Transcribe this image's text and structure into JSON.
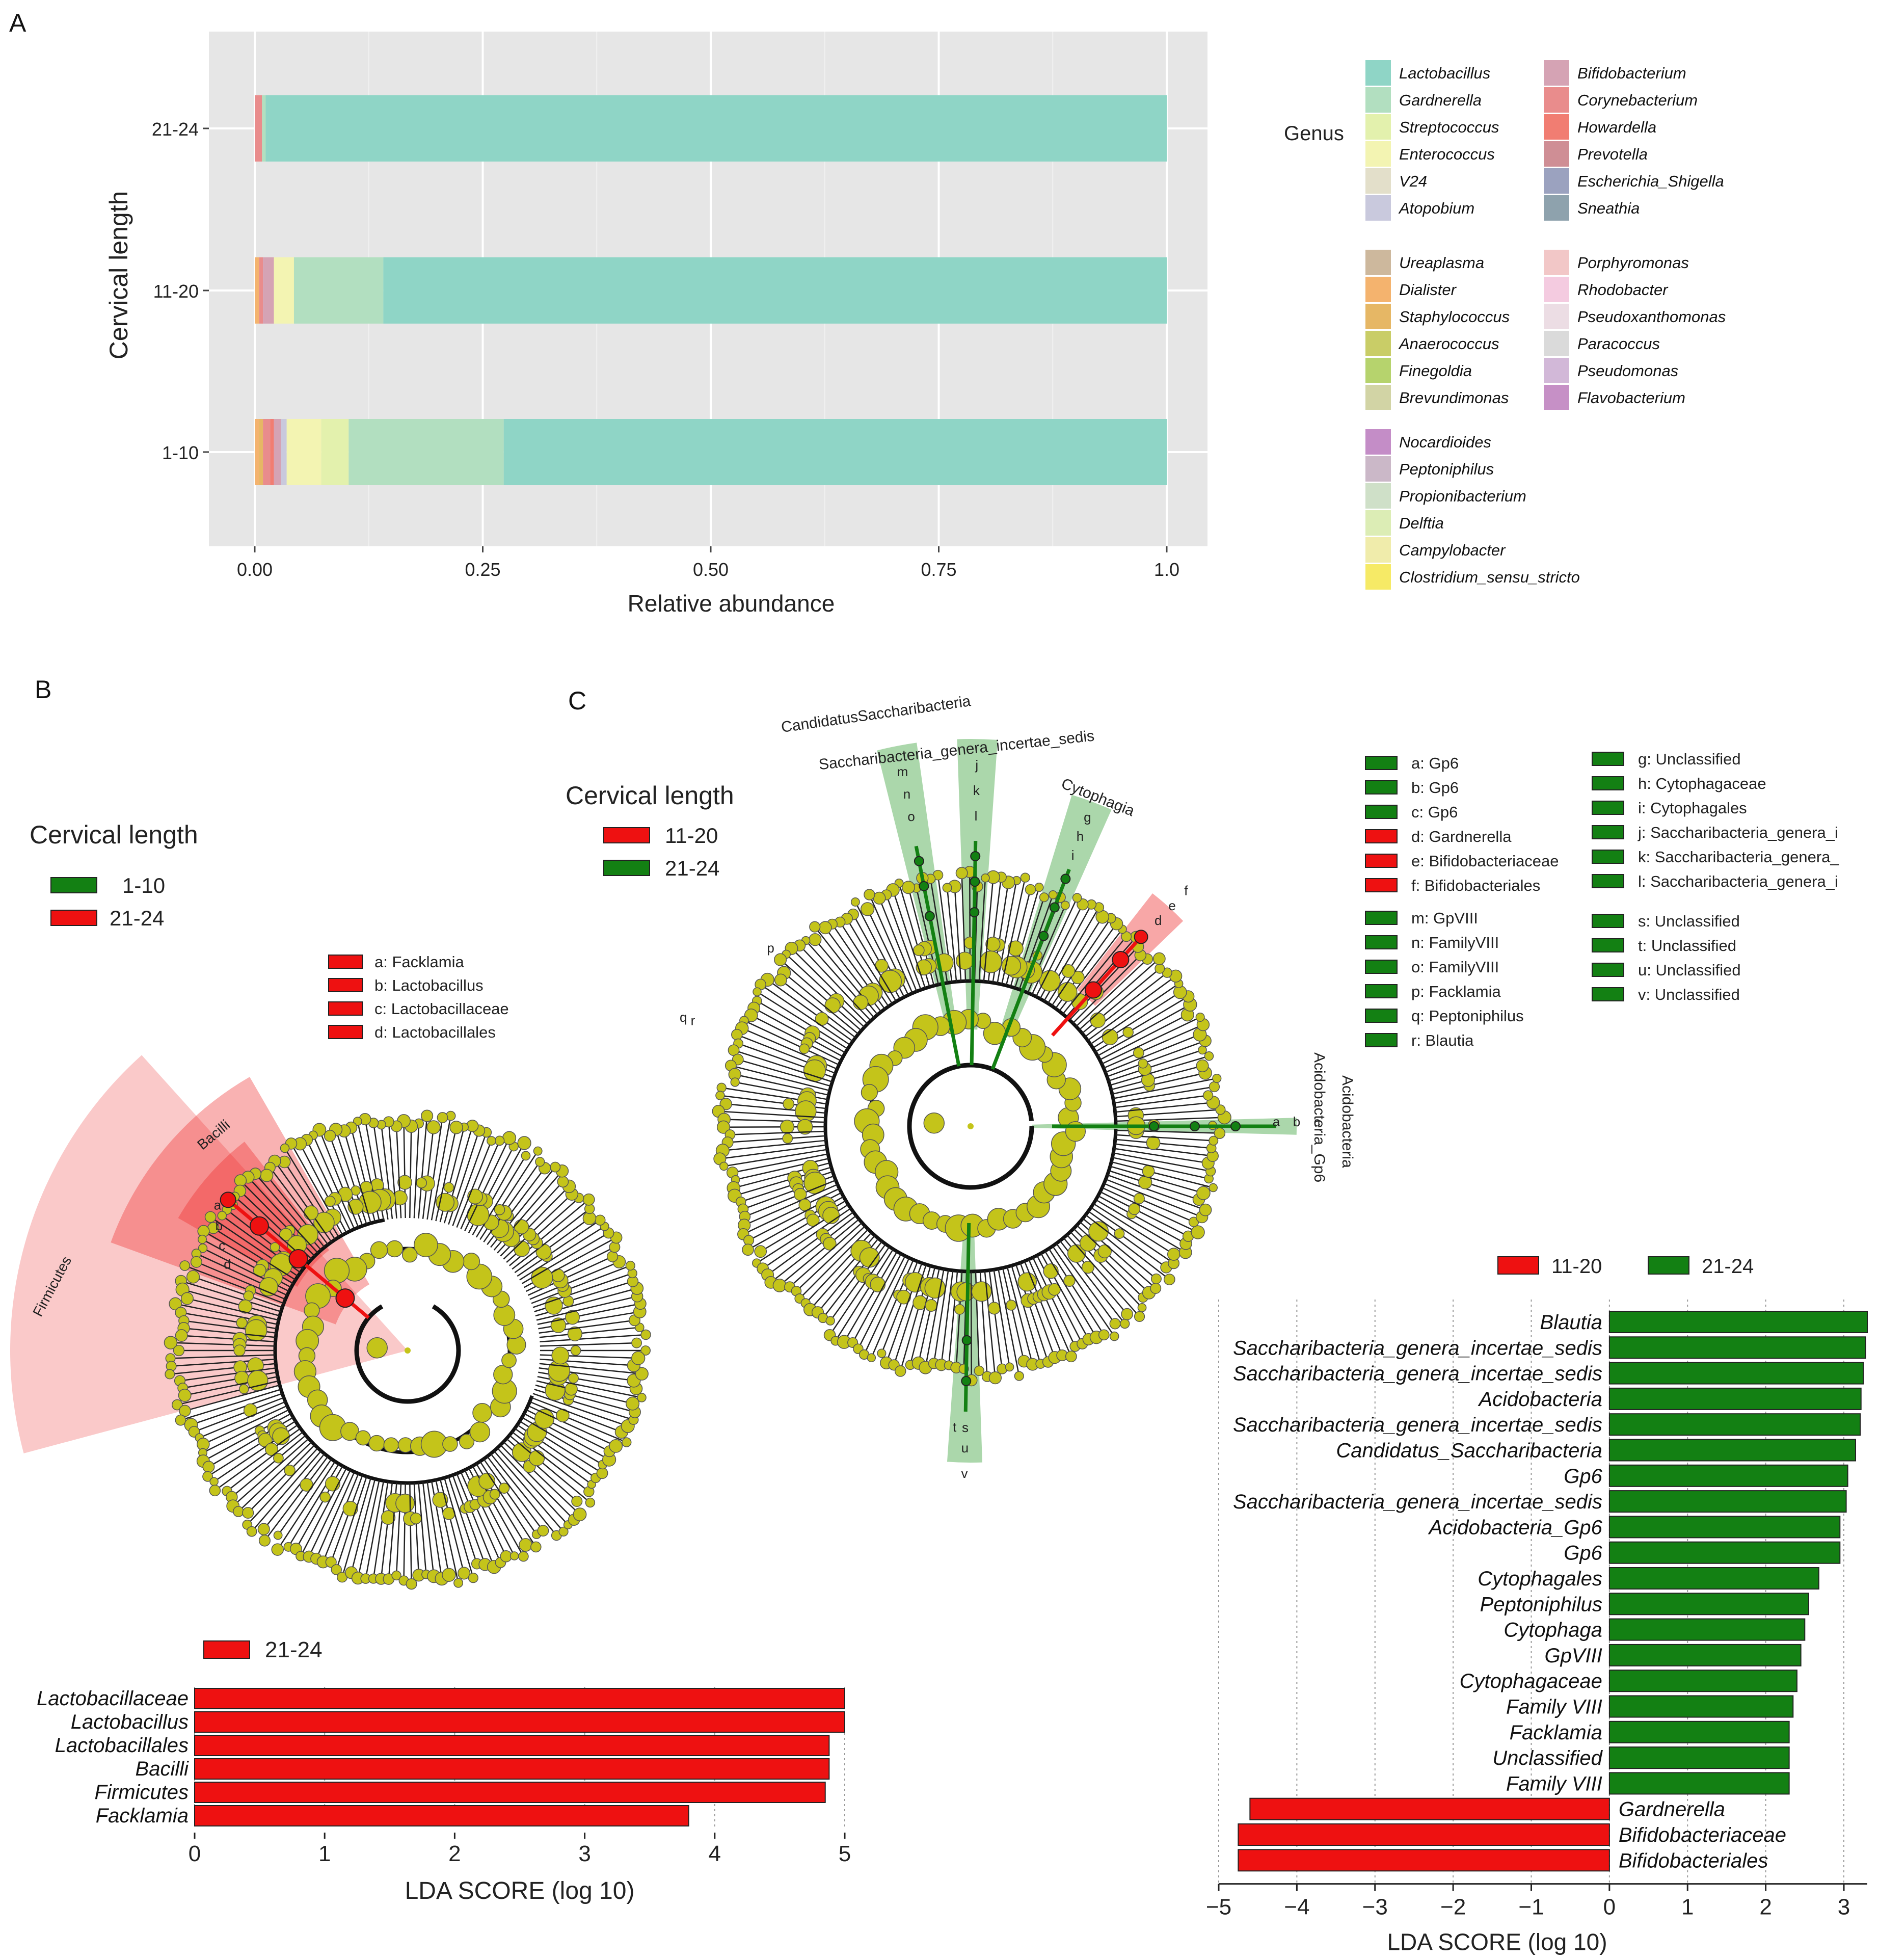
{
  "panels": {
    "a": "A",
    "b": "B",
    "c": "C"
  },
  "colors": {
    "red": "#ee1111",
    "green": "#138013",
    "node": "#c4c41a",
    "grey": "#e6e6e6"
  },
  "chart_data": [
    {
      "type": "bar",
      "orientation": "horizontal-stacked",
      "ylabel": "Cervical length",
      "xlabel": "Relative abundance",
      "xlim": [
        0,
        1
      ],
      "xticks": [
        "0.00",
        "0.25",
        "0.50",
        "0.75",
        "1.0"
      ],
      "categories": [
        "21-24",
        "11-20",
        "1-10"
      ],
      "legend_title": "Genus",
      "genera": [
        {
          "name": "Lactobacillus",
          "color": "#8fd5c6"
        },
        {
          "name": "Gardnerella",
          "color": "#b2dfc0"
        },
        {
          "name": "Streptococcus",
          "color": "#e3f1ad"
        },
        {
          "name": "Enterococcus",
          "color": "#f3f4b2"
        },
        {
          "name": "V24",
          "color": "#e3dfca"
        },
        {
          "name": "Atopobium",
          "color": "#c9c9dd"
        },
        {
          "name": "Bifidobacterium",
          "color": "#d5a3b4"
        },
        {
          "name": "Corynebacterium",
          "color": "#e98c8c"
        },
        {
          "name": "Howardella",
          "color": "#f17d72"
        },
        {
          "name": "Prevotella",
          "color": "#cf8e95"
        },
        {
          "name": "Escherichia_Shigella",
          "color": "#9ba2bf"
        },
        {
          "name": "Sneathia",
          "color": "#8ea2ad"
        },
        {
          "name": "Ureaplasma",
          "color": "#cdb89d"
        },
        {
          "name": "Dialister",
          "color": "#f4b36e"
        },
        {
          "name": "Staphylococcus",
          "color": "#e6b765"
        },
        {
          "name": "Anaerococcus",
          "color": "#c9cd67"
        },
        {
          "name": "Finegoldia",
          "color": "#b6d36d"
        },
        {
          "name": "Brevundimonas",
          "color": "#d2d4a5"
        },
        {
          "name": "Porphyromonas",
          "color": "#f2c7c7"
        },
        {
          "name": "Rhodobacter",
          "color": "#f4cbe0"
        },
        {
          "name": "Pseudoxanthomonas",
          "color": "#ecdde4"
        },
        {
          "name": "Paracoccus",
          "color": "#dadada"
        },
        {
          "name": "Pseudomonas",
          "color": "#d2b8d8"
        },
        {
          "name": "Flavobacterium",
          "color": "#c690c6"
        },
        {
          "name": "Nocardioides",
          "color": "#c48dc7"
        },
        {
          "name": "Peptoniphilus",
          "color": "#cbb8c8"
        },
        {
          "name": "Propionibacterium",
          "color": "#cfe0c8"
        },
        {
          "name": "Delftia",
          "color": "#dcedb5"
        },
        {
          "name": "Campylobacter",
          "color": "#f0ecab"
        },
        {
          "name": "Clostridium_sensu_stricto",
          "color": "#f6ea66"
        }
      ],
      "series": [
        {
          "category": "21-24",
          "segments": [
            {
              "genus": "Corynebacterium",
              "value": 0.008
            },
            {
              "genus": "Gardnerella",
              "value": 0.004
            },
            {
              "genus": "Lactobacillus",
              "value": 0.988
            }
          ]
        },
        {
          "category": "11-20",
          "segments": [
            {
              "genus": "Dialister",
              "value": 0.005
            },
            {
              "genus": "Corynebacterium",
              "value": 0.004
            },
            {
              "genus": "Bifidobacterium",
              "value": 0.012
            },
            {
              "genus": "Enterococcus",
              "value": 0.022
            },
            {
              "genus": "Gardnerella",
              "value": 0.098
            },
            {
              "genus": "Lactobacillus",
              "value": 0.859
            }
          ]
        },
        {
          "category": "1-10",
          "segments": [
            {
              "genus": "Dialister",
              "value": 0.005
            },
            {
              "genus": "Staphylococcus",
              "value": 0.004
            },
            {
              "genus": "Corynebacterium",
              "value": 0.008
            },
            {
              "genus": "Howardella",
              "value": 0.004
            },
            {
              "genus": "Bifidobacterium",
              "value": 0.008
            },
            {
              "genus": "Atopobium",
              "value": 0.006
            },
            {
              "genus": "Enterococcus",
              "value": 0.038
            },
            {
              "genus": "Streptococcus",
              "value": 0.03
            },
            {
              "genus": "Gardnerella",
              "value": 0.17
            },
            {
              "genus": "Lactobacillus",
              "value": 0.727
            }
          ]
        }
      ]
    },
    {
      "type": "bar",
      "orientation": "horizontal",
      "legend": [
        {
          "name": "21-24",
          "color": "#ee1111"
        }
      ],
      "xlabel": "LDA SCORE (log 10)",
      "xlim": [
        0,
        5
      ],
      "xticks": [
        "0",
        "1",
        "2",
        "3",
        "4",
        "5"
      ],
      "categories": [
        "Lactobacillaceae",
        "Lactobacillus",
        "Lactobacillales",
        "Bacilli",
        "Firmicutes",
        "Facklamia"
      ],
      "values": [
        5.0,
        5.0,
        4.88,
        4.88,
        4.85,
        3.8
      ]
    },
    {
      "type": "bar",
      "orientation": "horizontal",
      "legend": [
        {
          "name": "11-20",
          "color": "#ee1111"
        },
        {
          "name": "21-24",
          "color": "#138013"
        }
      ],
      "xlabel": "LDA SCORE (log 10)",
      "xlim": [
        -5,
        3.3
      ],
      "xticks": [
        "−5",
        "−4",
        "−3",
        "−2",
        "−1",
        "0",
        "1",
        "2",
        "3"
      ],
      "categories": [
        "Blautia",
        "Saccharibacteria_genera_incertae_sedis",
        "Saccharibacteria_genera_incertae_sedis",
        "Acidobacteria",
        "Saccharibacteria_genera_incertae_sedis",
        "Candidatus_Saccharibacteria",
        "Gp6",
        "Saccharibacteria_genera_incertae_sedis",
        "Acidobacteria_Gp6",
        "Gp6",
        "Cytophagales",
        "Peptoniphilus",
        "Cytophaga",
        "GpVIII",
        "Cytophagaceae",
        "Family VIII",
        "Facklamia",
        "Unclassified",
        "Family VIII",
        "Gardnerella",
        "Bifidobacteriaceae",
        "Bifidobacteriales"
      ],
      "values": [
        3.3,
        3.28,
        3.25,
        3.22,
        3.21,
        3.15,
        3.05,
        3.03,
        2.95,
        2.95,
        2.68,
        2.55,
        2.5,
        2.45,
        2.4,
        2.35,
        2.3,
        2.3,
        2.3,
        -4.6,
        -4.75,
        -4.75
      ]
    }
  ],
  "cladogram_b": {
    "legend_title": "Cervical length",
    "legend": [
      {
        "name": "1-10",
        "color": "#138013"
      },
      {
        "name": "21-24",
        "color": "#ee1111"
      }
    ],
    "key": [
      "a: Facklamia",
      "b: Lactobacillus",
      "c: Lactobacillaceae",
      "d: Lactobacillales"
    ],
    "sector_labels": [
      "Firmicutes",
      "Bacilli"
    ],
    "node_letters": [
      "a",
      "b",
      "c",
      "d"
    ]
  },
  "cladogram_c": {
    "legend_title": "Cervical length",
    "legend": [
      {
        "name": "11-20",
        "color": "#ee1111"
      },
      {
        "name": "21-24",
        "color": "#138013"
      }
    ],
    "key_col1_top": [
      {
        "text": "a: Gp6",
        "group": "21-24"
      },
      {
        "text": "b: Gp6",
        "group": "21-24"
      },
      {
        "text": "c: Gp6",
        "group": "21-24"
      },
      {
        "text": "d: Gardnerella",
        "group": "11-20"
      },
      {
        "text": "e: Bifidobacteriaceae",
        "group": "11-20"
      },
      {
        "text": "f: Bifidobacteriales",
        "group": "11-20"
      }
    ],
    "key_col2_top": [
      {
        "text": "g: Unclassified",
        "group": "21-24"
      },
      {
        "text": "h: Cytophagaceae",
        "group": "21-24"
      },
      {
        "text": "i: Cytophagales",
        "group": "21-24"
      },
      {
        "text": "j: Saccharibacteria_genera_i",
        "group": "21-24"
      },
      {
        "text": "k: Saccharibacteria_genera_",
        "group": "21-24"
      },
      {
        "text": "l: Saccharibacteria_genera_i",
        "group": "21-24"
      }
    ],
    "key_col1_bottom": [
      {
        "text": "m: GpVIII",
        "group": "21-24"
      },
      {
        "text": "n: FamilyVIII",
        "group": "21-24"
      },
      {
        "text": "o: FamilyVIII",
        "group": "21-24"
      },
      {
        "text": "p: Facklamia",
        "group": "21-24"
      },
      {
        "text": "q: Peptoniphilus",
        "group": "21-24"
      },
      {
        "text": "r: Blautia",
        "group": "21-24"
      }
    ],
    "key_col2_bottom": [
      {
        "text": "s: Unclassified",
        "group": "21-24"
      },
      {
        "text": "t: Unclassified",
        "group": "21-24"
      },
      {
        "text": "u: Unclassified",
        "group": "21-24"
      },
      {
        "text": "v: Unclassified",
        "group": "21-24"
      }
    ],
    "sector_labels": [
      "CandidatusSaccharibacteria",
      "Saccharibacteria_genera_incertae_sedis",
      "Cytophagia",
      "Acidobacteria",
      "Acidobacteria_Gp6"
    ],
    "node_letters": [
      "o",
      "n",
      "m",
      "l",
      "k",
      "j",
      "i",
      "h",
      "g",
      "f",
      "e",
      "d",
      "c",
      "b",
      "a",
      "s",
      "t",
      "u",
      "v",
      "p",
      "q",
      "r"
    ]
  }
}
